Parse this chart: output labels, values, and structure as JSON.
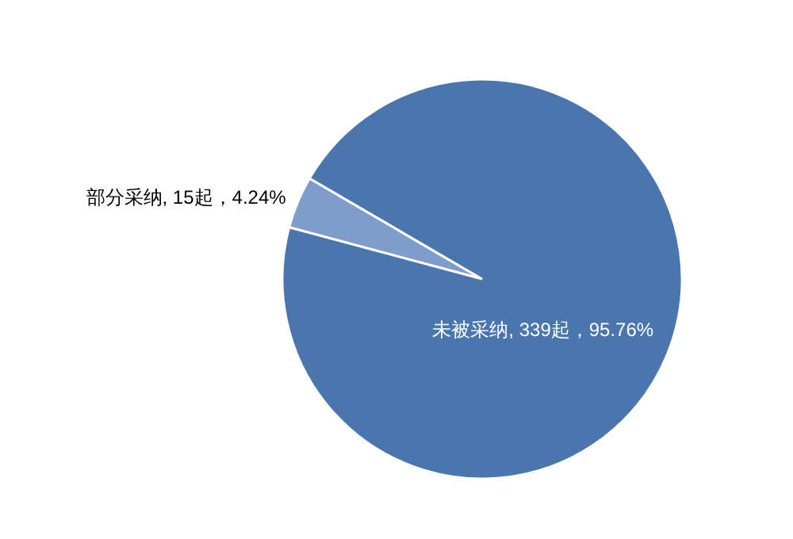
{
  "chart_data": {
    "type": "pie",
    "categories": [
      "部分采纳",
      "未被采纳"
    ],
    "values": [
      15,
      339
    ],
    "value_labels": [
      "15起，4.24%",
      "339起，95.76%"
    ],
    "colors": [
      "#7f9ccb",
      "#4a76ae"
    ]
  }
}
